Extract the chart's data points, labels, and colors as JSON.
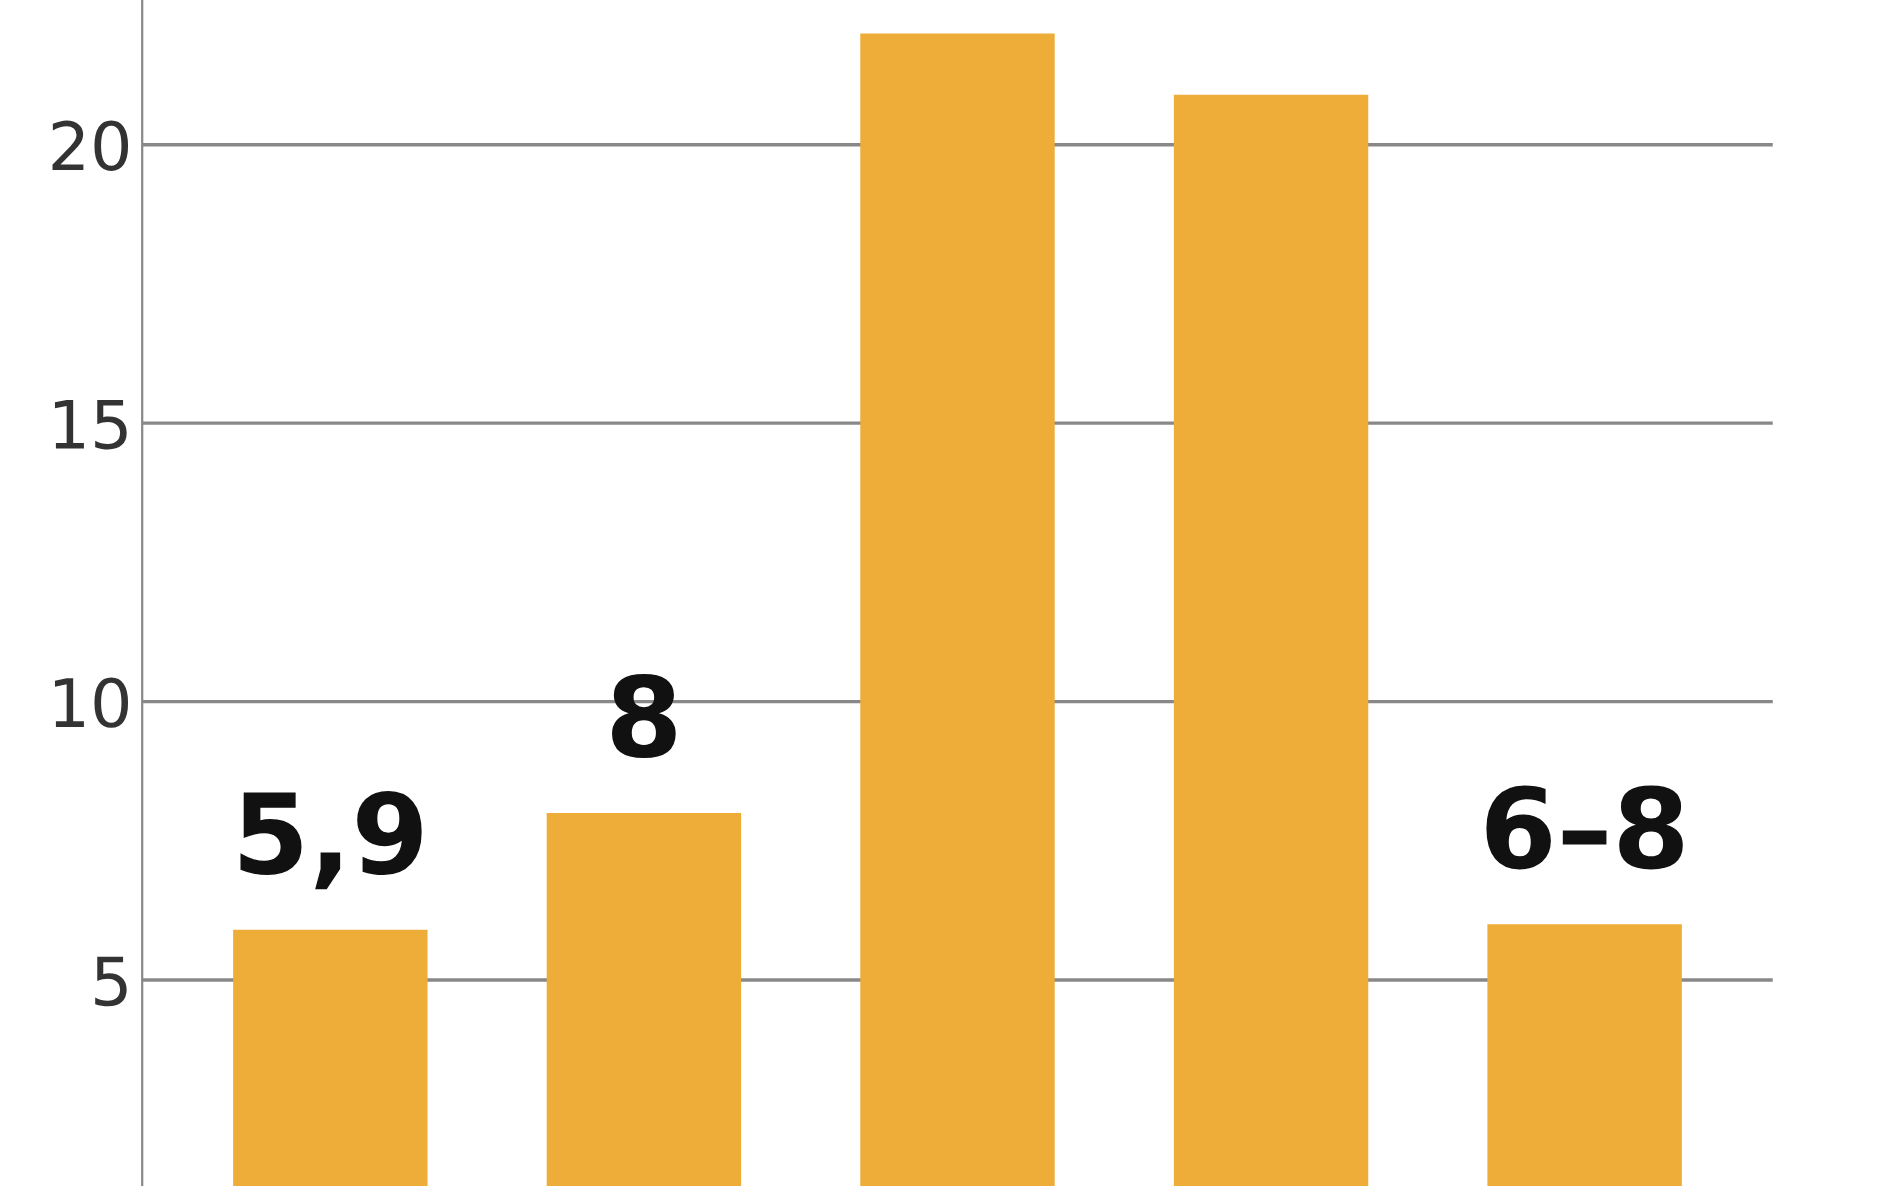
{
  "chart_data": {
    "type": "bar",
    "categories": [
      null,
      null,
      null,
      null,
      null
    ],
    "values": [
      5.9,
      8,
      22,
      20.9,
      6
    ],
    "value_labels": [
      "5,9",
      "8",
      null,
      null,
      "6–8"
    ],
    "color": "#eeac38",
    "ylim": [
      1.3,
      22.6
    ],
    "yticks": [
      5,
      10,
      15,
      20
    ],
    "grid": "y"
  }
}
